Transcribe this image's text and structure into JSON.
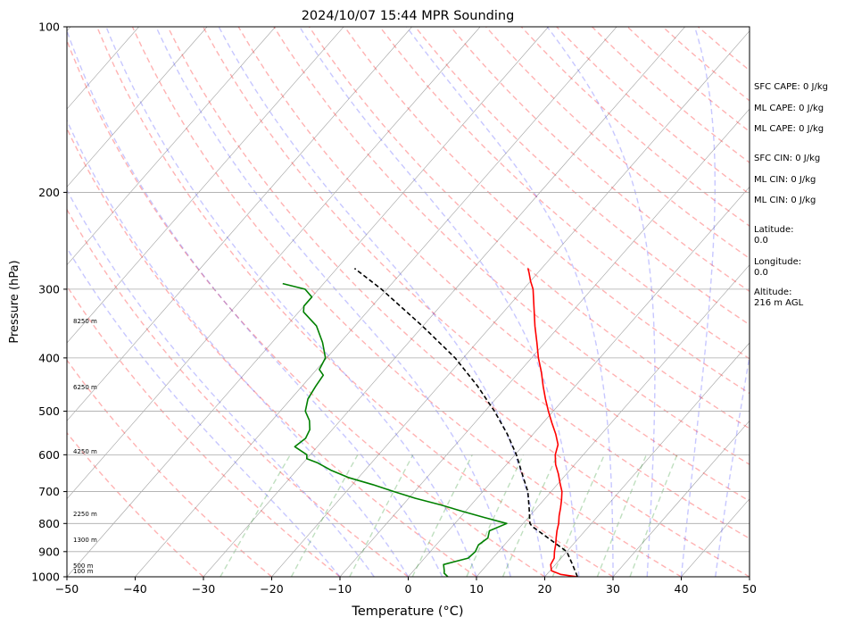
{
  "chart_data": {
    "type": "line",
    "title": "2024/10/07 15:44 MPR Sounding",
    "xlabel": "Temperature (°C)",
    "ylabel": "Pressure (hPa)",
    "xlim": [
      -50,
      50
    ],
    "ylim": [
      1000,
      100
    ],
    "y_scale": "log",
    "grid": true,
    "x_ticks": [
      "−50",
      "−40",
      "−30",
      "−20",
      "−10",
      "0",
      "10",
      "20",
      "30",
      "40",
      "50"
    ],
    "x_tick_values": [
      -50,
      -40,
      -30,
      -20,
      -10,
      0,
      10,
      20,
      30,
      40,
      50
    ],
    "y_ticks": [
      "100",
      "200",
      "300",
      "400",
      "500",
      "600",
      "700",
      "800",
      "900",
      "1000"
    ],
    "y_tick_values": [
      100,
      200,
      300,
      400,
      500,
      600,
      700,
      800,
      900,
      1000
    ],
    "series": [
      {
        "kind": "temperature",
        "color": "#ff0000",
        "pressure": [
          1000,
          990,
          975,
          950,
          925,
          900,
          875,
          850,
          825,
          800,
          775,
          750,
          725,
          700,
          675,
          650,
          625,
          600,
          575,
          550,
          525,
          500,
          475,
          450,
          425,
          400,
          375,
          350,
          325,
          300,
          290,
          280,
          275
        ],
        "values": [
          24.8,
          22.0,
          20.2,
          19.3,
          19.0,
          18.2,
          17.5,
          16.7,
          15.9,
          15.2,
          14.3,
          13.5,
          12.6,
          11.6,
          10.2,
          8.8,
          7.2,
          5.9,
          5.0,
          3.3,
          1.3,
          -0.7,
          -2.7,
          -4.7,
          -6.7,
          -9.0,
          -11.2,
          -13.6,
          -16.0,
          -18.6,
          -20.0,
          -21.3,
          -22.0
        ]
      },
      {
        "kind": "dewpoint",
        "color": "#008000",
        "pressure": [
          1000,
          985,
          975,
          950,
          925,
          900,
          875,
          850,
          825,
          800,
          780,
          760,
          740,
          720,
          700,
          680,
          660,
          640,
          620,
          610,
          600,
          580,
          560,
          540,
          520,
          500,
          475,
          450,
          430,
          420,
          400,
          375,
          350,
          330,
          322,
          310,
          300,
          293
        ],
        "values": [
          5.8,
          4.8,
          4.5,
          3.6,
          6.4,
          6.6,
          6.2,
          6.7,
          6.0,
          7.6,
          3.5,
          -0.5,
          -4.5,
          -9.0,
          -13.0,
          -17.0,
          -21.5,
          -25.0,
          -28.0,
          -30.0,
          -30.5,
          -33.3,
          -32.8,
          -33.3,
          -34.5,
          -36.3,
          -37.5,
          -38.0,
          -38.3,
          -39.6,
          -40.2,
          -42.6,
          -45.6,
          -49.3,
          -50.0,
          -50.0,
          -52.0,
          -56.0
        ]
      },
      {
        "kind": "parcel",
        "color": "#000000",
        "pressure": [
          1000,
          950,
          900,
          850,
          810,
          800,
          750,
          700,
          650,
          600,
          550,
          500,
          450,
          400,
          350,
          300,
          275
        ],
        "values": [
          24.8,
          22.5,
          20.0,
          15.5,
          11.7,
          11.0,
          8.9,
          6.6,
          3.5,
          0.2,
          -3.8,
          -8.6,
          -14.3,
          -21.2,
          -30.1,
          -40.8,
          -47.4
        ]
      }
    ],
    "height_labels": [
      {
        "pressure": 980,
        "text": "100 m"
      },
      {
        "pressure": 959,
        "text": "500 m"
      },
      {
        "pressure": 862,
        "text": "1300 m"
      },
      {
        "pressure": 774,
        "text": "2250 m"
      },
      {
        "pressure": 595,
        "text": "4250 m"
      },
      {
        "pressure": 455,
        "text": "6250 m"
      },
      {
        "pressure": 345,
        "text": "8250 m"
      }
    ]
  },
  "stats": {
    "sfc_cape": "SFC CAPE: 0 J/kg",
    "ml_cape_1": "ML CAPE: 0 J/kg",
    "ml_cape_2": "ML CAPE: 0 J/kg",
    "sfc_cin": "SFC CIN: 0 J/kg",
    "ml_cin_1": "ML CIN: 0 J/kg",
    "ml_cin_2": "ML CIN: 0 J/kg",
    "lat_label": "Latitude:",
    "lat_value": "0.0",
    "lon_label": "Longitude:",
    "lon_value": "0.0",
    "alt_label": "Altitude:",
    "alt_value": "216 m AGL"
  }
}
